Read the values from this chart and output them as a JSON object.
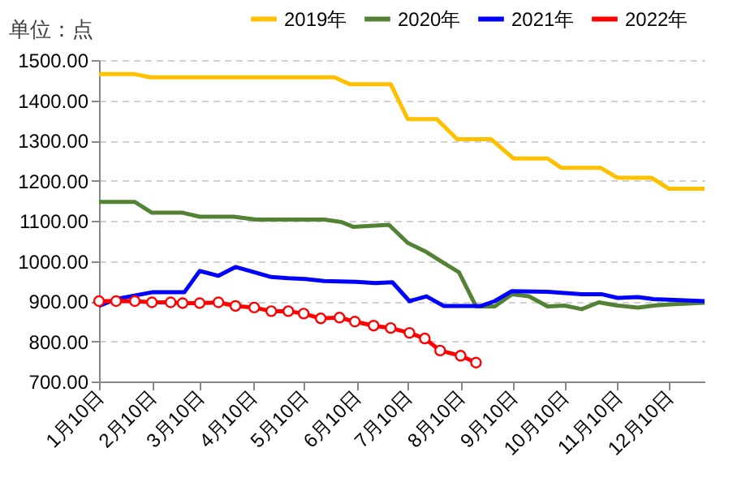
{
  "chart_data": {
    "type": "line",
    "ylabel": "单位：点",
    "xlim": [
      "--01-10",
      "--12-31"
    ],
    "xticks": [
      {
        "value": "--01-10",
        "label": "1月10日"
      },
      {
        "value": "--02-10",
        "label": "2月10日"
      },
      {
        "value": "--03-10",
        "label": "3月10日"
      },
      {
        "value": "--04-10",
        "label": "4月10日"
      },
      {
        "value": "--05-10",
        "label": "5月10日"
      },
      {
        "value": "--06-10",
        "label": "6月10日"
      },
      {
        "value": "--07-10",
        "label": "7月10日"
      },
      {
        "value": "--08-10",
        "label": "8月10日"
      },
      {
        "value": "--09-10",
        "label": "9月10日"
      },
      {
        "value": "--10-10",
        "label": "10月10日"
      },
      {
        "value": "--11-10",
        "label": "11月10日"
      },
      {
        "value": "--12-10",
        "label": "12月10日"
      }
    ],
    "ylim": [
      700,
      1500
    ],
    "yticks": [
      {
        "value": 700,
        "label": "700.00"
      },
      {
        "value": 800,
        "label": "800.00"
      },
      {
        "value": 900,
        "label": "900.00"
      },
      {
        "value": 1000,
        "label": "1000.00"
      },
      {
        "value": 1100,
        "label": "1100.00"
      },
      {
        "value": 1200,
        "label": "1200.00"
      },
      {
        "value": 1300,
        "label": "1300.00"
      },
      {
        "value": 1400,
        "label": "1400.00"
      },
      {
        "value": 1500,
        "label": "1500.00"
      }
    ],
    "grid": "y",
    "legend": "top right",
    "series": [
      {
        "name": "2019年",
        "color": "#ffc000",
        "marker": "none",
        "x": [
          "--01-10",
          "--01-31",
          "--02-09",
          "--05-28",
          "--06-06",
          "--06-30",
          "--07-10",
          "--07-27",
          "--08-08",
          "--08-28",
          "--09-10",
          "--09-30",
          "--10-08",
          "--10-31",
          "--11-10",
          "--11-30",
          "--12-10",
          "--12-31"
        ],
        "values": [
          1465,
          1465,
          1457,
          1457,
          1440,
          1440,
          1353,
          1353,
          1303,
          1303,
          1255,
          1255,
          1232,
          1232,
          1207,
          1207,
          1180,
          1180
        ]
      },
      {
        "name": "2020年",
        "color": "#548235",
        "marker": "none",
        "x": [
          "--01-10",
          "--01-31",
          "--02-10",
          "--02-28",
          "--03-10",
          "--03-30",
          "--04-12",
          "--05-22",
          "--06-01",
          "--06-08",
          "--06-29",
          "--07-10",
          "--07-21",
          "--07-31",
          "--08-09",
          "--08-19",
          "--08-30",
          "--09-09",
          "--09-19",
          "--09-30",
          "--10-10",
          "--10-20",
          "--10-30",
          "--11-10",
          "--11-22",
          "--12-01",
          "--12-11",
          "--12-31"
        ],
        "values": [
          1147,
          1147,
          1120,
          1120,
          1110,
          1110,
          1103,
          1103,
          1097,
          1085,
          1090,
          1045,
          1022,
          995,
          972,
          887,
          887,
          917,
          912,
          887,
          889,
          880,
          897,
          889,
          884,
          889,
          892,
          896
        ]
      },
      {
        "name": "2021年",
        "color": "#0000ff",
        "marker": "none",
        "x": [
          "--01-10",
          "--01-20",
          "--02-10",
          "--03-01",
          "--03-10",
          "--03-21",
          "--03-31",
          "--04-11",
          "--04-21",
          "--05-01",
          "--05-11",
          "--05-22",
          "--06-10",
          "--06-21",
          "--07-01",
          "--07-11",
          "--07-21",
          "--07-31",
          "--08-22",
          "--08-30",
          "--09-09",
          "--09-30",
          "--10-20",
          "--11-01",
          "--11-10",
          "--11-22",
          "--12-01",
          "--12-31"
        ],
        "values": [
          888,
          905,
          922,
          922,
          975,
          963,
          985,
          972,
          960,
          957,
          955,
          950,
          948,
          945,
          947,
          900,
          912,
          888,
          888,
          900,
          925,
          923,
          917,
          917,
          908,
          910,
          905,
          900
        ]
      },
      {
        "name": "2022年",
        "color": "#ff0000",
        "marker": "circle",
        "x": [
          "--01-10",
          "--01-20",
          "--01-31",
          "--02-10",
          "--02-21",
          "--02-28",
          "--03-10",
          "--03-21",
          "--03-31",
          "--04-11",
          "--04-21",
          "--05-01",
          "--05-10",
          "--05-20",
          "--05-31",
          "--06-09",
          "--06-20",
          "--06-30",
          "--07-11",
          "--07-20",
          "--07-29",
          "--08-10",
          "--08-19"
        ],
        "values": [
          900,
          900,
          900,
          897,
          897,
          895,
          895,
          897,
          888,
          884,
          875,
          875,
          869,
          857,
          859,
          849,
          839,
          833,
          821,
          807,
          777,
          764,
          747
        ]
      }
    ]
  }
}
